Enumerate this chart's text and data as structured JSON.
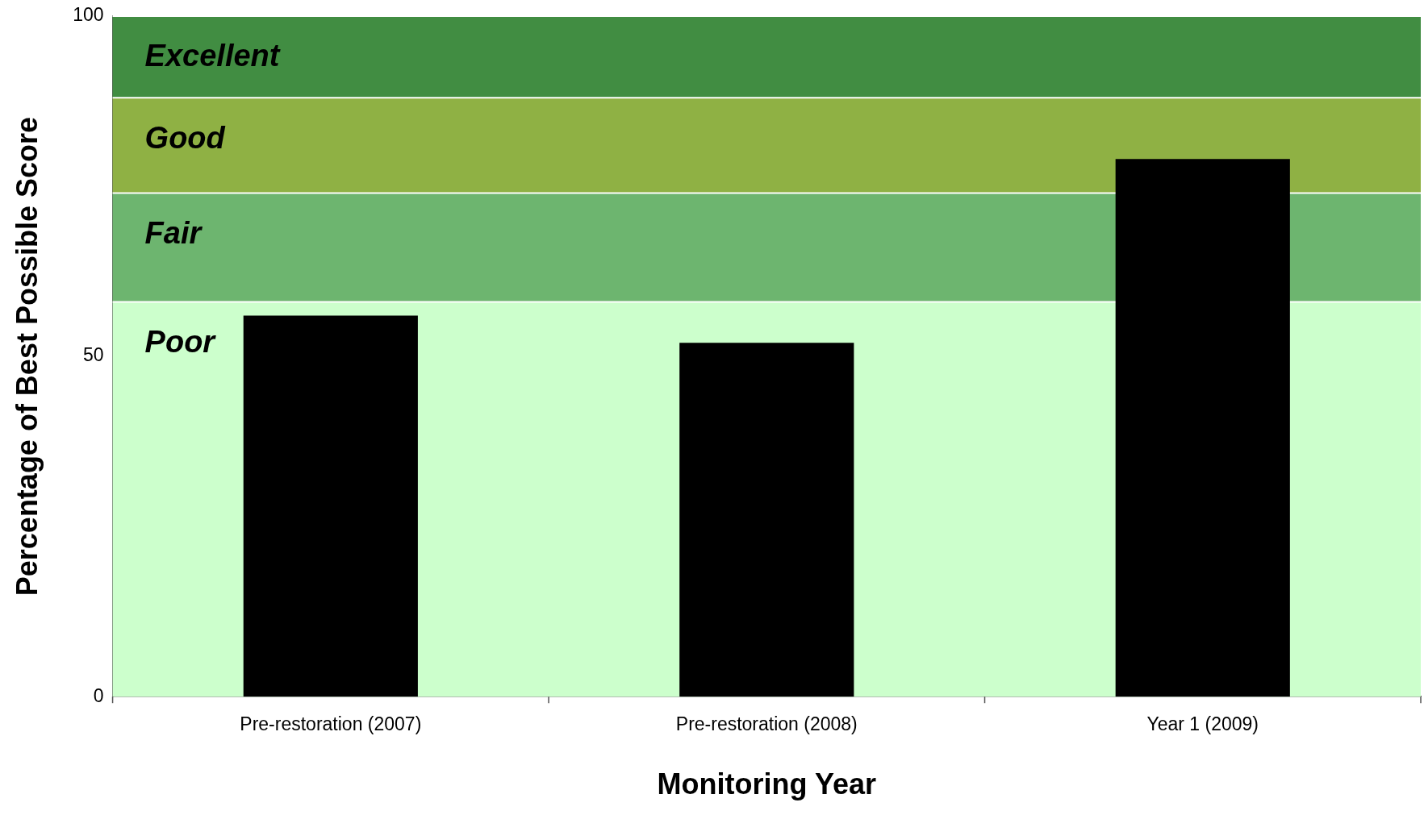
{
  "chart_data": {
    "type": "bar",
    "xlabel": "Monitoring Year",
    "ylabel": "Percentage of Best Possible Score",
    "categories": [
      "Pre-restoration (2007)",
      "Pre-restoration (2008)",
      "Year 1 (2009)"
    ],
    "values": [
      56,
      52,
      79
    ],
    "color": "#000000",
    "ylim": [
      0,
      100
    ],
    "yticks": [
      0,
      50,
      100
    ],
    "grid": false,
    "bands": [
      {
        "axis": "y",
        "from": 88,
        "to": 100,
        "label": "Excellent",
        "color": "#418d42"
      },
      {
        "axis": "y",
        "from": 74,
        "to": 88,
        "label": "Good",
        "color": "#8fb144"
      },
      {
        "axis": "y",
        "from": 58,
        "to": 74,
        "label": "Fair",
        "color": "#6db56f"
      },
      {
        "axis": "y",
        "from": 0,
        "to": 58,
        "label": "Poor",
        "color": "#ccffcc"
      }
    ]
  }
}
